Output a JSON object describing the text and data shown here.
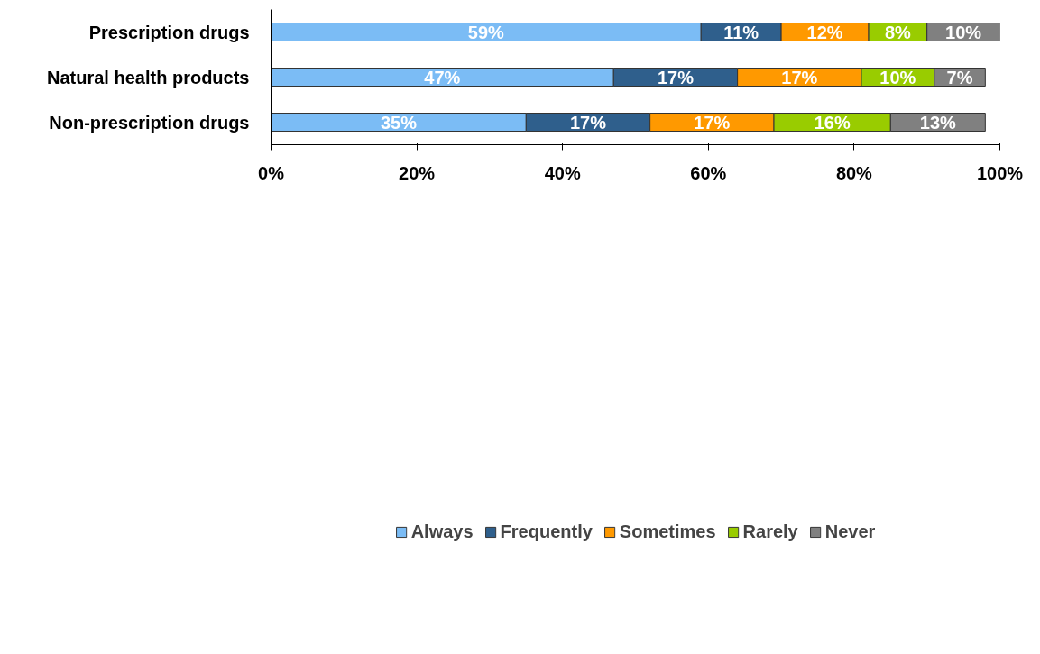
{
  "chart_data": {
    "type": "bar",
    "orientation": "horizontal",
    "stacked": true,
    "categories": [
      "Prescription drugs",
      "Natural health products",
      "Non-prescription drugs"
    ],
    "series": [
      {
        "name": "Always",
        "color": "#7bbcf5",
        "values": [
          59,
          47,
          35
        ],
        "value_labels": [
          "59%",
          "47%",
          "35%"
        ]
      },
      {
        "name": "Frequently",
        "color": "#2f5f8c",
        "values": [
          11,
          17,
          17
        ],
        "value_labels": [
          "11%",
          "17%",
          "17%"
        ]
      },
      {
        "name": "Sometimes",
        "color": "#ff9900",
        "values": [
          12,
          17,
          17
        ],
        "value_labels": [
          "12%",
          "17%",
          "17%"
        ]
      },
      {
        "name": "Rarely",
        "color": "#99cc00",
        "values": [
          8,
          10,
          16
        ],
        "value_labels": [
          "8%",
          "10%",
          "16%"
        ]
      },
      {
        "name": "Never",
        "color": "#808080",
        "values": [
          10,
          7,
          13
        ],
        "value_labels": [
          "10%",
          "7%",
          "13%"
        ]
      }
    ],
    "xlim": [
      0,
      100
    ],
    "xticks": [
      {
        "value": 0,
        "label": "0%"
      },
      {
        "value": 20,
        "label": "20%"
      },
      {
        "value": 40,
        "label": "40%"
      },
      {
        "value": 60,
        "label": "60%"
      },
      {
        "value": 80,
        "label": "80%"
      },
      {
        "value": 100,
        "label": "100%"
      }
    ],
    "grid": false,
    "legend": "bottom"
  }
}
